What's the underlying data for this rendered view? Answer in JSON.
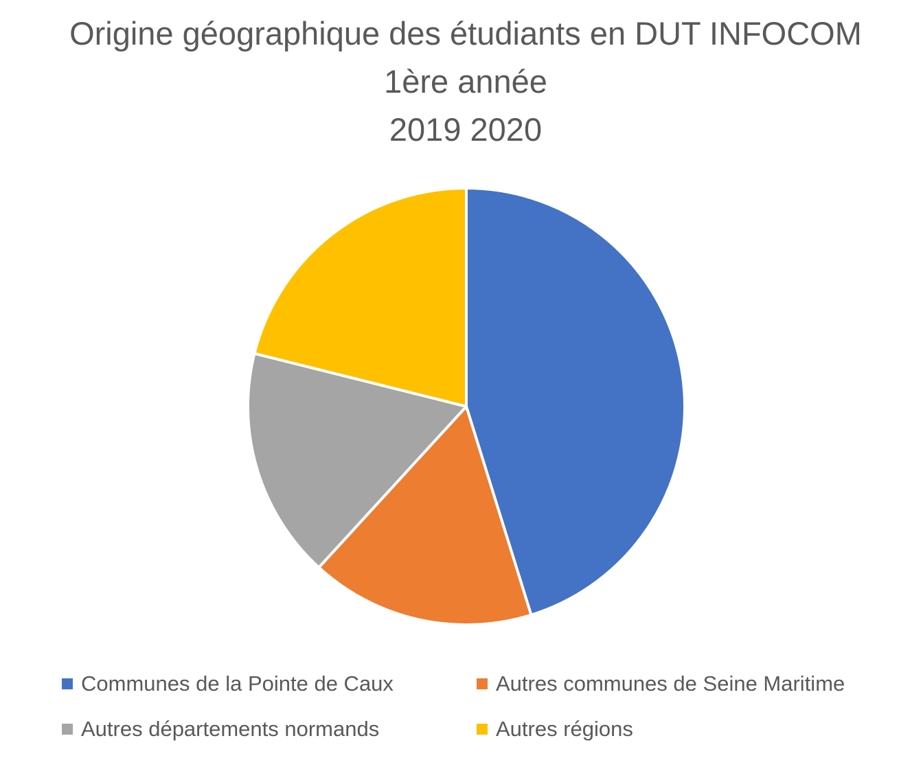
{
  "chart_data": {
    "type": "pie",
    "title": "Origine géographique des étudiants en DUT INFOCOM\n1ère année\n2019 2020",
    "title_lines": [
      "Origine géographique des étudiants en DUT INFOCOM",
      "1ère année",
      "2019 2020"
    ],
    "series": [
      {
        "categories": [
          "Communes de la Pointe de Caux",
          "Autres communes de Seine Maritime",
          "Autres départements normands",
          "Autres régions"
        ],
        "values": [
          45.2,
          16.6,
          17.1,
          21.1
        ],
        "colors": [
          "#4472C4",
          "#ED7D31",
          "#A5A5A5",
          "#FFC000"
        ]
      }
    ],
    "legend": {
      "position": "bottom",
      "items": [
        {
          "label": "Communes de la Pointe de Caux",
          "color": "#4472C4"
        },
        {
          "label": "Autres communes de Seine Maritime",
          "color": "#ED7D31"
        },
        {
          "label": "Autres départements normands",
          "color": "#A5A5A5"
        },
        {
          "label": "Autres régions",
          "color": "#FFC000"
        }
      ]
    }
  }
}
